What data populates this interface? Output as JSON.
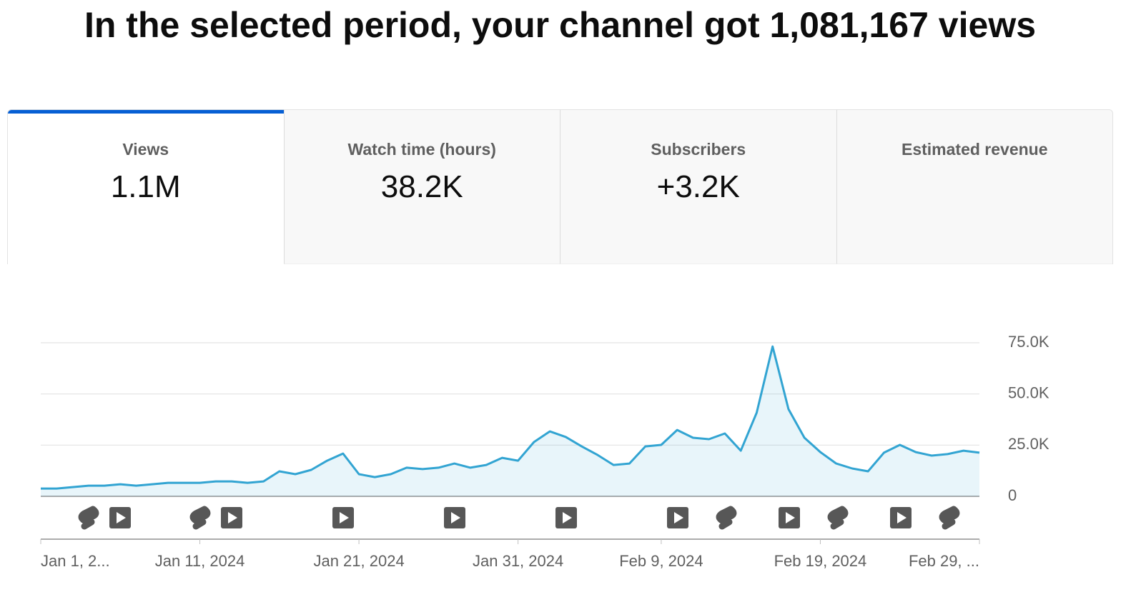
{
  "header": {
    "title": "In the selected period, your channel got 1,081,167 views"
  },
  "tabs": [
    {
      "label": "Views",
      "value": "1.1M"
    },
    {
      "label": "Watch time (hours)",
      "value": "38.2K"
    },
    {
      "label": "Subscribers",
      "value": "+3.2K"
    },
    {
      "label": "Estimated revenue"
    }
  ],
  "chart_data": {
    "type": "line",
    "categories": [
      "Jan 1, 2...",
      null,
      null,
      null,
      null,
      null,
      null,
      null,
      null,
      null,
      "Jan 11, 2024",
      null,
      null,
      null,
      null,
      null,
      null,
      null,
      null,
      null,
      "Jan 21, 2024",
      null,
      null,
      null,
      null,
      null,
      null,
      null,
      null,
      null,
      "Jan 31, 2024",
      null,
      null,
      null,
      null,
      null,
      null,
      null,
      null,
      "Feb 9, 2024",
      null,
      null,
      null,
      null,
      null,
      null,
      null,
      null,
      null,
      "Feb 19, 2024",
      null,
      null,
      null,
      null,
      null,
      null,
      null,
      null,
      null,
      "Feb 29, ..."
    ],
    "series": [
      {
        "name": "Views",
        "color": "#32a4d2",
        "values": [
          3800,
          3800,
          4500,
          5200,
          5200,
          5900,
          5200,
          5900,
          6600,
          6600,
          6600,
          7300,
          7300,
          6600,
          7300,
          12200,
          10800,
          12900,
          17400,
          20900,
          10800,
          9400,
          10800,
          14000,
          13300,
          14000,
          16000,
          14000,
          15300,
          18800,
          17400,
          26500,
          31700,
          29000,
          24400,
          20200,
          15300,
          16000,
          24400,
          25100,
          32400,
          28600,
          27900,
          30700,
          22300,
          40800,
          73200,
          42600,
          28600,
          21600,
          16000,
          13600,
          12200,
          21300,
          25100,
          21600,
          19900,
          20600,
          22300,
          21300
        ]
      }
    ],
    "ylim": [
      0,
      75000
    ],
    "yticks": [
      0,
      {
        "value": 25000,
        "label": "25.0K"
      },
      {
        "value": 50000,
        "label": "50.0K"
      },
      {
        "value": 75000,
        "label": "75.0K"
      }
    ],
    "grid": true
  }
}
